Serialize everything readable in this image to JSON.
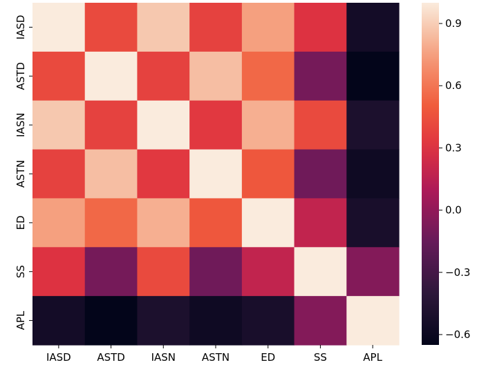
{
  "chart_data": {
    "type": "heatmap",
    "title": "",
    "x_categories": [
      "IASD",
      "ASTD",
      "IASN",
      "ASTN",
      "ED",
      "SS",
      "APL"
    ],
    "y_categories": [
      "IASD",
      "ASTD",
      "IASN",
      "ASTN",
      "ED",
      "SS",
      "APL"
    ],
    "values": [
      [
        1.0,
        0.42,
        0.88,
        0.38,
        0.75,
        0.3,
        -0.55
      ],
      [
        0.42,
        1.0,
        0.38,
        0.85,
        0.55,
        -0.1,
        -0.65
      ],
      [
        0.88,
        0.38,
        1.0,
        0.33,
        0.8,
        0.42,
        -0.5
      ],
      [
        0.38,
        0.85,
        0.33,
        1.0,
        0.48,
        -0.12,
        -0.58
      ],
      [
        0.75,
        0.55,
        0.8,
        0.48,
        1.0,
        0.18,
        -0.52
      ],
      [
        0.3,
        -0.1,
        0.42,
        -0.12,
        0.18,
        1.0,
        -0.05
      ],
      [
        -0.55,
        -0.65,
        -0.5,
        -0.58,
        -0.52,
        -0.05,
        1.0
      ]
    ],
    "colorbar": {
      "min": -0.65,
      "max": 1.0,
      "ticks": [
        0.9,
        0.6,
        0.3,
        0.0,
        -0.3,
        -0.6
      ],
      "tick_labels": [
        "0.9",
        "0.6",
        "0.3",
        "0.0",
        "−0.3",
        "−0.6"
      ],
      "colormap": "rocket"
    },
    "grid": false
  }
}
